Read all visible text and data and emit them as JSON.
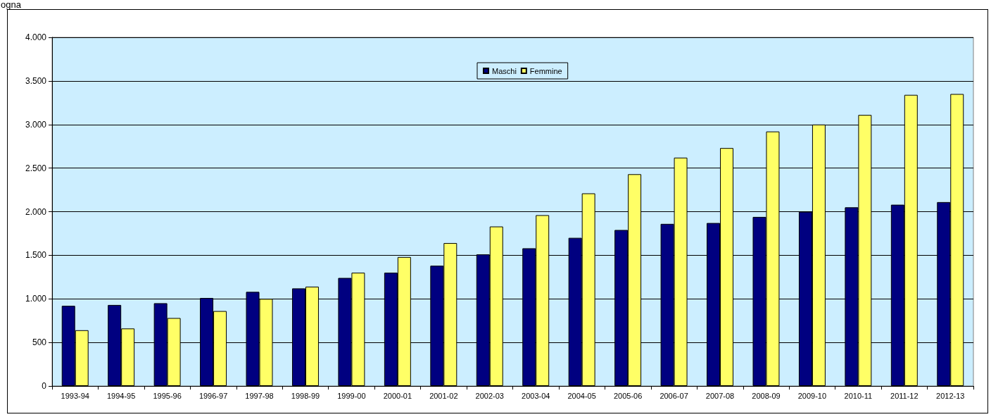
{
  "chart_data": {
    "type": "bar",
    "annotations": [
      "ogna"
    ],
    "categories": [
      "1993-94",
      "1994-95",
      "1995-96",
      "1996-97",
      "1997-98",
      "1998-99",
      "1999-00",
      "2000-01",
      "2001-02",
      "2002-03",
      "2003-04",
      "2004-05",
      "2005-06",
      "2006-07",
      "2007-08",
      "2008-09",
      "2009-10",
      "2010-11",
      "2011-12",
      "2012-13"
    ],
    "series": [
      {
        "name": "Maschi",
        "color": "#000080",
        "values": [
          920,
          930,
          950,
          1010,
          1080,
          1120,
          1240,
          1300,
          1380,
          1510,
          1580,
          1700,
          1790,
          1860,
          1870,
          1940,
          2000,
          2050,
          2080,
          2110
        ]
      },
      {
        "name": "Femmine",
        "color": "#ffff66",
        "values": [
          640,
          660,
          780,
          860,
          1000,
          1140,
          1300,
          1480,
          1640,
          1830,
          1960,
          2210,
          2430,
          2620,
          2730,
          2920,
          3000,
          3110,
          3340,
          3350
        ]
      }
    ],
    "ylim": [
      0,
      4000
    ],
    "yticks": [
      0,
      500,
      {
        "value": 1000,
        "label": "1.000"
      },
      {
        "value": 1500,
        "label": "1.500"
      },
      {
        "value": 2000,
        "label": "2.000"
      },
      {
        "value": 2500,
        "label": "2.500"
      },
      {
        "value": 3000,
        "label": "3.000"
      },
      {
        "value": 3500,
        "label": "3.500"
      },
      {
        "value": 4000,
        "label": "4.000"
      }
    ],
    "grid": "y",
    "legend": "top"
  }
}
